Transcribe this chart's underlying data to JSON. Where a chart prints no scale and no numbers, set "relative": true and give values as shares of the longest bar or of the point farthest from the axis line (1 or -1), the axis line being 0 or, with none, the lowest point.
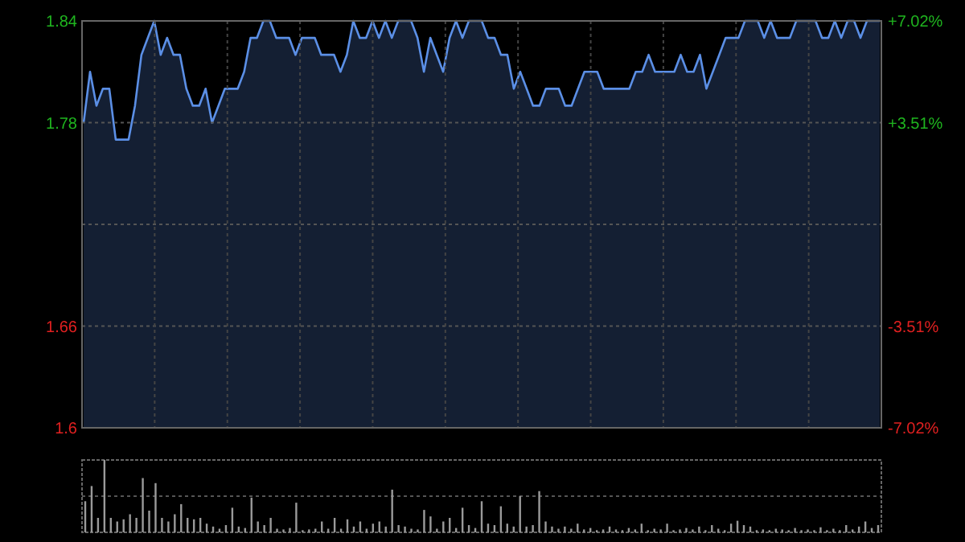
{
  "chart_data": [
    {
      "type": "area",
      "categories": [
        null,
        null,
        null,
        null,
        null,
        null,
        null,
        null,
        null,
        null,
        null,
        null,
        null,
        null,
        null,
        null,
        null,
        null,
        null,
        null,
        null,
        null,
        null,
        null,
        null,
        null,
        null,
        null,
        null,
        null,
        null,
        null,
        null,
        null,
        null,
        null,
        null,
        null,
        null,
        null,
        null,
        null,
        null,
        null,
        null,
        null,
        null,
        null,
        null,
        null,
        null,
        null,
        null,
        null,
        null,
        null,
        null,
        null,
        null,
        null,
        null,
        null,
        null,
        null,
        null,
        null,
        null,
        null,
        null,
        null,
        null,
        null,
        null,
        null,
        null,
        null,
        null,
        null,
        null,
        null,
        null,
        null,
        null,
        null,
        null,
        null,
        null,
        null,
        null,
        null,
        null,
        null,
        null,
        null,
        null,
        null,
        null,
        null,
        null,
        null,
        null,
        null,
        null,
        null,
        null,
        null,
        null,
        null,
        null,
        null,
        null,
        null,
        null,
        null,
        null,
        null,
        null,
        null,
        null,
        null,
        null,
        null,
        null,
        null,
        null
      ],
      "series": [
        {
          "color": "#5b8fe6",
          "values": [
            1.78,
            1.81,
            1.79,
            1.8,
            1.8,
            1.77,
            1.77,
            1.77,
            1.79,
            1.82,
            1.83,
            1.84,
            1.82,
            1.83,
            1.82,
            1.82,
            1.8,
            1.79,
            1.79,
            1.8,
            1.78,
            1.79,
            1.8,
            1.8,
            1.8,
            1.81,
            1.83,
            1.83,
            1.84,
            1.84,
            1.83,
            1.83,
            1.83,
            1.82,
            1.83,
            1.83,
            1.83,
            1.82,
            1.82,
            1.82,
            1.81,
            1.82,
            1.84,
            1.83,
            1.83,
            1.84,
            1.83,
            1.84,
            1.83,
            1.84,
            1.84,
            1.84,
            1.83,
            1.81,
            1.83,
            1.82,
            1.81,
            1.83,
            1.84,
            1.83,
            1.84,
            1.84,
            1.84,
            1.83,
            1.83,
            1.82,
            1.82,
            1.8,
            1.81,
            1.8,
            1.79,
            1.79,
            1.8,
            1.8,
            1.8,
            1.79,
            1.79,
            1.8,
            1.81,
            1.81,
            1.81,
            1.8,
            1.8,
            1.8,
            1.8,
            1.8,
            1.81,
            1.81,
            1.82,
            1.81,
            1.81,
            1.81,
            1.81,
            1.82,
            1.81,
            1.81,
            1.82,
            1.8,
            1.81,
            1.82,
            1.83,
            1.83,
            1.83,
            1.84,
            1.84,
            1.84,
            1.83,
            1.84,
            1.83,
            1.83,
            1.83,
            1.84,
            1.84,
            1.84,
            1.84,
            1.83,
            1.83,
            1.84,
            1.83,
            1.84,
            1.84,
            1.83,
            1.84,
            1.84,
            1.84
          ]
        }
      ],
      "ylim": [
        1.6,
        1.84
      ],
      "yticks": [
        1.6,
        1.66,
        {
          "value": 1.72,
          "label": null
        },
        1.78,
        1.84
      ],
      "y2lim": [
        -7.02,
        7.02
      ],
      "y2ticks": [
        {
          "value": -7.02,
          "label": "-7.02%"
        },
        {
          "value": -3.51,
          "label": "-3.51%"
        },
        {
          "value": 3.51,
          "label": "+3.51%"
        },
        {
          "value": 7.02,
          "label": "+7.02%"
        }
      ],
      "grid": true
    },
    {
      "type": "bar",
      "relative": true,
      "color": "#9a9a9a",
      "ref_lines": [
        {
          "axis": "y",
          "value": 0.5,
          "color": "#555555",
          "line_style": "dashed"
        }
      ],
      "categories": [
        null,
        null,
        null,
        null,
        null,
        null,
        null,
        null,
        null,
        null,
        null,
        null,
        null,
        null,
        null,
        null,
        null,
        null,
        null,
        null,
        null,
        null,
        null,
        null,
        null,
        null,
        null,
        null,
        null,
        null,
        null,
        null,
        null,
        null,
        null,
        null,
        null,
        null,
        null,
        null,
        null,
        null,
        null,
        null,
        null,
        null,
        null,
        null,
        null,
        null,
        null,
        null,
        null,
        null,
        null,
        null,
        null,
        null,
        null,
        null,
        null,
        null,
        null,
        null,
        null,
        null,
        null,
        null,
        null,
        null,
        null,
        null,
        null,
        null,
        null,
        null,
        null,
        null,
        null,
        null,
        null,
        null,
        null,
        null,
        null,
        null,
        null,
        null,
        null,
        null,
        null,
        null,
        null,
        null,
        null,
        null,
        null,
        null,
        null,
        null,
        null,
        null,
        null,
        null,
        null,
        null,
        null,
        null,
        null,
        null,
        null,
        null,
        null,
        null,
        null,
        null,
        null,
        null,
        null,
        null,
        null,
        null,
        null,
        null,
        null
      ],
      "values": [
        0.43,
        0.64,
        0.2,
        1.0,
        0.2,
        0.15,
        0.18,
        0.25,
        0.2,
        0.75,
        0.3,
        0.68,
        0.2,
        0.15,
        0.25,
        0.39,
        0.2,
        0.18,
        0.2,
        0.12,
        0.08,
        0.05,
        0.1,
        0.34,
        0.08,
        0.06,
        0.48,
        0.15,
        0.1,
        0.2,
        0.05,
        0.04,
        0.06,
        0.41,
        0.03,
        0.04,
        0.05,
        0.15,
        0.05,
        0.2,
        0.05,
        0.18,
        0.08,
        0.15,
        0.05,
        0.12,
        0.15,
        0.08,
        0.59,
        0.1,
        0.08,
        0.05,
        0.04,
        0.31,
        0.22,
        0.05,
        0.15,
        0.2,
        0.06,
        0.34,
        0.1,
        0.06,
        0.43,
        0.12,
        0.1,
        0.36,
        0.12,
        0.08,
        0.5,
        0.08,
        0.1,
        0.57,
        0.15,
        0.08,
        0.05,
        0.08,
        0.05,
        0.12,
        0.04,
        0.06,
        0.03,
        0.04,
        0.08,
        0.04,
        0.03,
        0.06,
        0.04,
        0.12,
        0.03,
        0.05,
        0.04,
        0.12,
        0.03,
        0.04,
        0.06,
        0.04,
        0.08,
        0.03,
        0.1,
        0.05,
        0.03,
        0.12,
        0.16,
        0.1,
        0.08,
        0.03,
        0.04,
        0.03,
        0.05,
        0.04,
        0.03,
        0.06,
        0.03,
        0.04,
        0.03,
        0.07,
        0.03,
        0.05,
        0.03,
        0.1,
        0.04,
        0.08,
        0.15,
        0.06,
        0.1
      ]
    }
  ]
}
